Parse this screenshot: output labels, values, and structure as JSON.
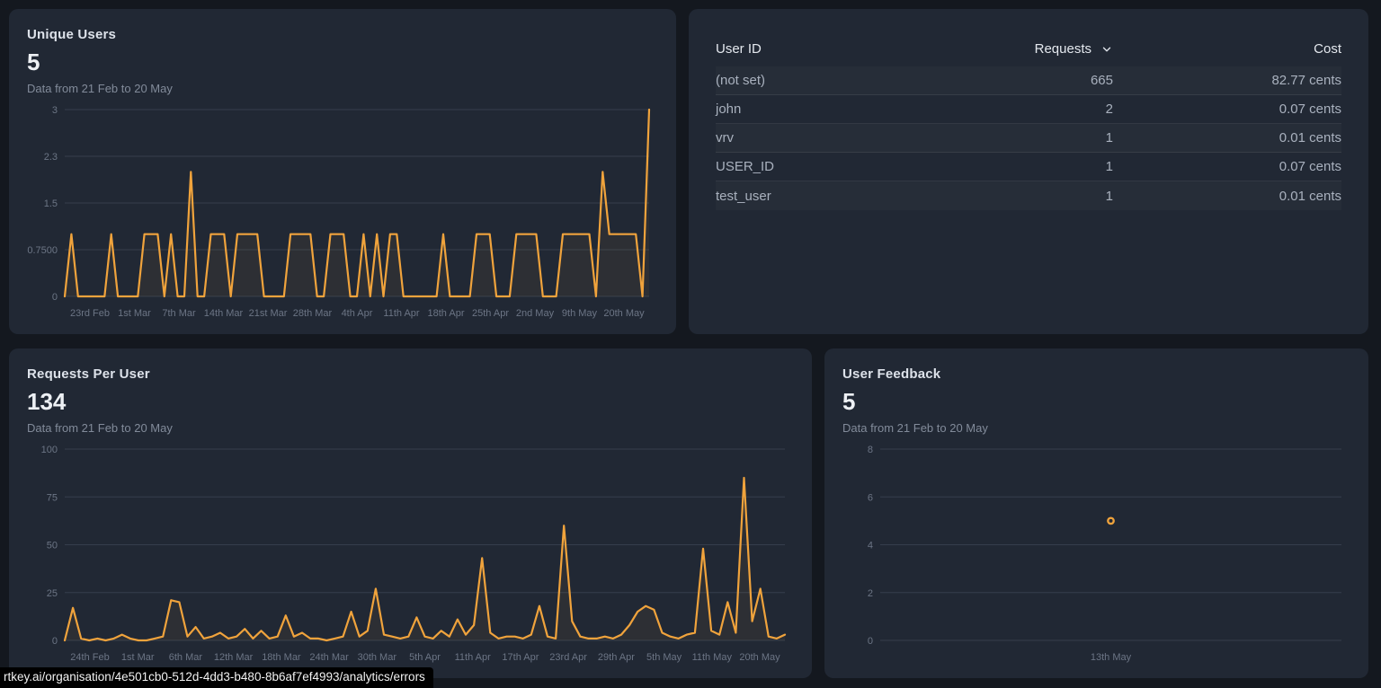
{
  "colors": {
    "page_bg": "#14181f",
    "panel_bg": "#212834",
    "accent": "#F0A33C",
    "grid": "#363E4C"
  },
  "icons": {
    "sort": "chevron-down"
  },
  "status_bar": {
    "url": "rtkey.ai/organisation/4e501cb0-512d-4dd3-b480-8b6af7ef4993/analytics/errors"
  },
  "panels": {
    "unique_users": {
      "title": "Unique Users",
      "value": "5",
      "subtitle": "Data from 21 Feb to 20 May"
    },
    "requests_per_user": {
      "title": "Requests Per User",
      "value": "134",
      "subtitle": "Data from 21 Feb to 20 May"
    },
    "user_feedback": {
      "title": "User Feedback",
      "value": "5",
      "subtitle": "Data from 21 Feb to 20 May"
    },
    "user_table": {
      "columns": [
        "User ID",
        "Requests",
        "Cost"
      ],
      "sorted_by": "Requests",
      "rows": [
        {
          "user_id": "(not set)",
          "requests": "665",
          "cost": "82.77 cents"
        },
        {
          "user_id": "john",
          "requests": "2",
          "cost": "0.07 cents"
        },
        {
          "user_id": "vrv",
          "requests": "1",
          "cost": "0.01 cents"
        },
        {
          "user_id": "USER_ID",
          "requests": "1",
          "cost": "0.07 cents"
        },
        {
          "user_id": "test_user",
          "requests": "1",
          "cost": "0.01 cents"
        }
      ]
    }
  },
  "chart_data": [
    {
      "id": "unique-users-chart",
      "type": "line",
      "title": "Unique Users",
      "x_start": "21 Feb",
      "x_end": "20 May",
      "ylim": [
        0,
        3
      ],
      "yticks": [
        {
          "v": 3,
          "label": "3"
        },
        {
          "v": 2.25,
          "label": "2.3"
        },
        {
          "v": 1.5,
          "label": "1.5"
        },
        {
          "v": 0.75,
          "label": "0.7500"
        },
        {
          "v": 0,
          "label": "0"
        }
      ],
      "xtick_labels": [
        "23rd Feb",
        "1st Mar",
        "7th Mar",
        "14th Mar",
        "21st Mar",
        "28th Mar",
        "4th Apr",
        "11th Apr",
        "18th Apr",
        "25th Apr",
        "2nd May",
        "9th May",
        "20th May"
      ],
      "series": [
        {
          "name": "Unique Users",
          "values": [
            0,
            1,
            0,
            0,
            0,
            0,
            0,
            1,
            0,
            0,
            0,
            0,
            1,
            1,
            1,
            0,
            1,
            0,
            0,
            2,
            0,
            0,
            1,
            1,
            1,
            0,
            1,
            1,
            1,
            1,
            0,
            0,
            0,
            0,
            1,
            1,
            1,
            1,
            0,
            0,
            1,
            1,
            1,
            0,
            0,
            1,
            0,
            1,
            0,
            1,
            1,
            0,
            0,
            0,
            0,
            0,
            0,
            1,
            0,
            0,
            0,
            0,
            1,
            1,
            1,
            0,
            0,
            0,
            1,
            1,
            1,
            1,
            0,
            0,
            0,
            1,
            1,
            1,
            1,
            1,
            0,
            2,
            1,
            1,
            1,
            1,
            1,
            0,
            3
          ]
        }
      ]
    },
    {
      "id": "requests-per-user-chart",
      "type": "line",
      "title": "Requests Per User",
      "x_start": "21 Feb",
      "x_end": "20 May",
      "ylim": [
        0,
        100
      ],
      "yticks": [
        {
          "v": 100,
          "label": "100"
        },
        {
          "v": 75,
          "label": "75"
        },
        {
          "v": 50,
          "label": "50"
        },
        {
          "v": 25,
          "label": "25"
        },
        {
          "v": 0,
          "label": "0"
        }
      ],
      "xtick_labels": [
        "24th Feb",
        "1st Mar",
        "6th Mar",
        "12th Mar",
        "18th Mar",
        "24th Mar",
        "30th Mar",
        "5th Apr",
        "11th Apr",
        "17th Apr",
        "23rd Apr",
        "29th Apr",
        "5th May",
        "11th May",
        "20th May"
      ],
      "series": [
        {
          "name": "Requests",
          "values": [
            0,
            17,
            1,
            0,
            1,
            0,
            1,
            3,
            1,
            0,
            0,
            1,
            2,
            21,
            20,
            2,
            7,
            1,
            2,
            4,
            1,
            2,
            6,
            1,
            5,
            1,
            2,
            13,
            2,
            4,
            1,
            1,
            0,
            1,
            2,
            15,
            2,
            5,
            27,
            3,
            2,
            1,
            2,
            12,
            2,
            1,
            5,
            2,
            11,
            3,
            8,
            43,
            4,
            1,
            2,
            2,
            1,
            3,
            18,
            2,
            1,
            60,
            10,
            2,
            1,
            1,
            2,
            1,
            3,
            8,
            15,
            18,
            16,
            4,
            2,
            1,
            3,
            4,
            48,
            5,
            3,
            20,
            4,
            85,
            10,
            27,
            2,
            1,
            3
          ]
        }
      ]
    },
    {
      "id": "user-feedback-chart",
      "type": "scatter",
      "title": "User Feedback",
      "ylim": [
        0,
        8
      ],
      "yticks": [
        {
          "v": 8,
          "label": "8"
        },
        {
          "v": 6,
          "label": "6"
        },
        {
          "v": 4,
          "label": "4"
        },
        {
          "v": 2,
          "label": "2"
        },
        {
          "v": 0,
          "label": "0"
        }
      ],
      "xtick_labels": [
        "13th May"
      ],
      "points": [
        {
          "x_label": "13th May",
          "x_frac": 0.5,
          "y": 5
        }
      ]
    }
  ]
}
